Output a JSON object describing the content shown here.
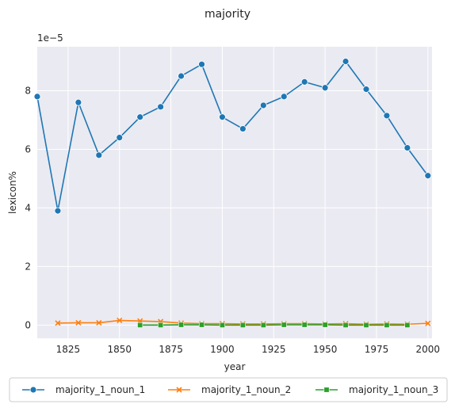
{
  "chart_data": {
    "type": "line",
    "title": "majority",
    "xlabel": "year",
    "ylabel": "lexicon%",
    "y_multiplier_label": "1e−5",
    "xlim": [
      1810,
      2002
    ],
    "ylim": [
      -0.45,
      9.5
    ],
    "x_ticks": [
      1825,
      1850,
      1875,
      1900,
      1925,
      1950,
      1975,
      2000
    ],
    "y_ticks": [
      0,
      2,
      4,
      6,
      8
    ],
    "grid": true,
    "legend_position": "bottom-outside",
    "series": [
      {
        "name": "majority_1_noun_1",
        "color": "#1f77b4",
        "marker": "circle",
        "x": [
          1810,
          1820,
          1830,
          1840,
          1850,
          1860,
          1870,
          1880,
          1890,
          1900,
          1910,
          1920,
          1930,
          1940,
          1950,
          1960,
          1970,
          1980,
          1990,
          2000
        ],
        "y": [
          7.8,
          3.9,
          7.6,
          5.8,
          6.4,
          7.1,
          7.45,
          8.5,
          8.9,
          7.1,
          6.7,
          7.5,
          7.8,
          8.3,
          8.1,
          9.0,
          8.05,
          7.15,
          6.05,
          5.1
        ]
      },
      {
        "name": "majority_1_noun_2",
        "color": "#ff7f0e",
        "marker": "x",
        "x": [
          1820,
          1830,
          1840,
          1850,
          1860,
          1870,
          1880,
          1890,
          1900,
          1910,
          1920,
          1930,
          1940,
          1950,
          1960,
          1970,
          1980,
          1990,
          2000
        ],
        "y": [
          0.07,
          0.08,
          0.08,
          0.16,
          0.14,
          0.12,
          0.07,
          0.05,
          0.05,
          0.04,
          0.04,
          0.05,
          0.05,
          0.04,
          0.05,
          0.03,
          0.04,
          0.03,
          0.06
        ]
      },
      {
        "name": "majority_1_noun_3",
        "color": "#2ca02c",
        "marker": "square",
        "x": [
          1860,
          1870,
          1880,
          1890,
          1900,
          1910,
          1920,
          1930,
          1940,
          1950,
          1960,
          1970,
          1980,
          1990
        ],
        "y": [
          0.0,
          0.0,
          0.01,
          0.01,
          0.0,
          0.0,
          0.0,
          0.01,
          0.01,
          0.01,
          0.0,
          0.0,
          0.0,
          0.0
        ]
      }
    ]
  }
}
